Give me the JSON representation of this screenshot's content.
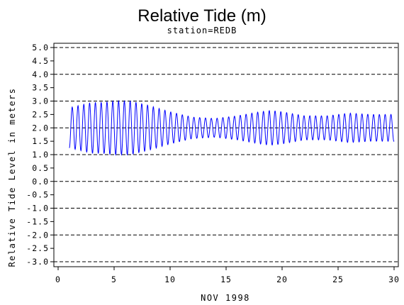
{
  "chart_data": {
    "type": "line",
    "title": "Relative Tide (m)",
    "subtitle": "station=REDB",
    "xlabel": "NOV 1998",
    "ylabel": "Relative Tide Level in meters",
    "xlim": [
      0,
      30
    ],
    "ylim": [
      -3.0,
      5.0
    ],
    "x_ticks": [
      "0",
      "5",
      "10",
      "15",
      "20",
      "25",
      "30"
    ],
    "y_ticks": [
      "5.0",
      "4.5",
      "4.0",
      "3.5",
      "3.0",
      "2.5",
      "2.0",
      "1.5",
      "1.0",
      "0.5",
      "0.0",
      "-0.5",
      "-1.0",
      "-1.5",
      "-2.0",
      "-2.5",
      "-3.0"
    ],
    "grid": "horizontal dashed at every 1.0 m",
    "line_color": "#0000ff",
    "series": [
      {
        "x_start": 1.0,
        "x_end": 30.0,
        "period_days": 0.5175,
        "mean_level": 2.0,
        "amplitude_envelope": {
          "day": [
            1,
            3,
            4,
            5,
            6.5,
            8,
            10,
            12,
            14,
            16,
            18,
            19,
            20,
            22,
            24,
            26,
            28,
            30
          ],
          "half_range": [
            0.75,
            0.95,
            0.95,
            1.0,
            1.0,
            0.85,
            0.6,
            0.4,
            0.35,
            0.45,
            0.6,
            0.65,
            0.6,
            0.45,
            0.45,
            0.55,
            0.5,
            0.5
          ]
        }
      }
    ]
  }
}
